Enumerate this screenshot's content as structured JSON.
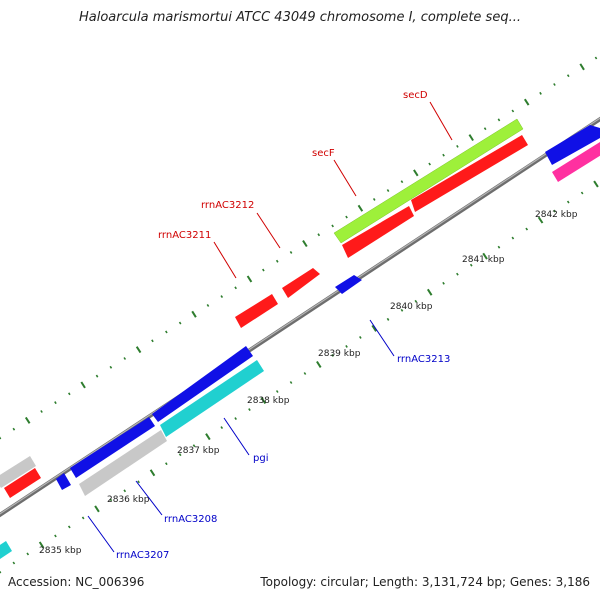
{
  "title": "Haloarcula marismortui ATCC 43049 chromosome I, complete seq...",
  "accession": "Accession: NC_006396",
  "topology": "Topology: circular; Length: 3,131,724 bp; Genes: 3,186",
  "colors": {
    "backbone": "#8a8a8a",
    "tick_major": "#2e7d2e",
    "tick_minor": "#2e7d2e",
    "label_forward": "#d00000",
    "label_reverse": "#0000c8",
    "red": "#ff1a1a",
    "blue": "#1010e6",
    "green": "#9ef03a",
    "cyan": "#20d0d0",
    "gray": "#c8c8c8",
    "pink": "#ff30a0"
  },
  "kbp_ticks": [
    {
      "label": "2835 kbp"
    },
    {
      "label": "2836 kbp"
    },
    {
      "label": "2837 kbp"
    },
    {
      "label": "2838 kbp"
    },
    {
      "label": "2839 kbp"
    },
    {
      "label": "2840 kbp"
    },
    {
      "label": "2841 kbp"
    },
    {
      "label": "2842 kbp"
    }
  ],
  "gene_labels": [
    {
      "text": "secD",
      "strand": "forward"
    },
    {
      "text": "secF",
      "strand": "forward"
    },
    {
      "text": "rrnAC3212",
      "strand": "forward"
    },
    {
      "text": "rrnAC3211",
      "strand": "forward"
    },
    {
      "text": "rrnAC3213",
      "strand": "reverse"
    },
    {
      "text": "pgi",
      "strand": "reverse"
    },
    {
      "text": "rrnAC3208",
      "strand": "reverse"
    },
    {
      "text": "rrnAC3207",
      "strand": "reverse"
    }
  ]
}
